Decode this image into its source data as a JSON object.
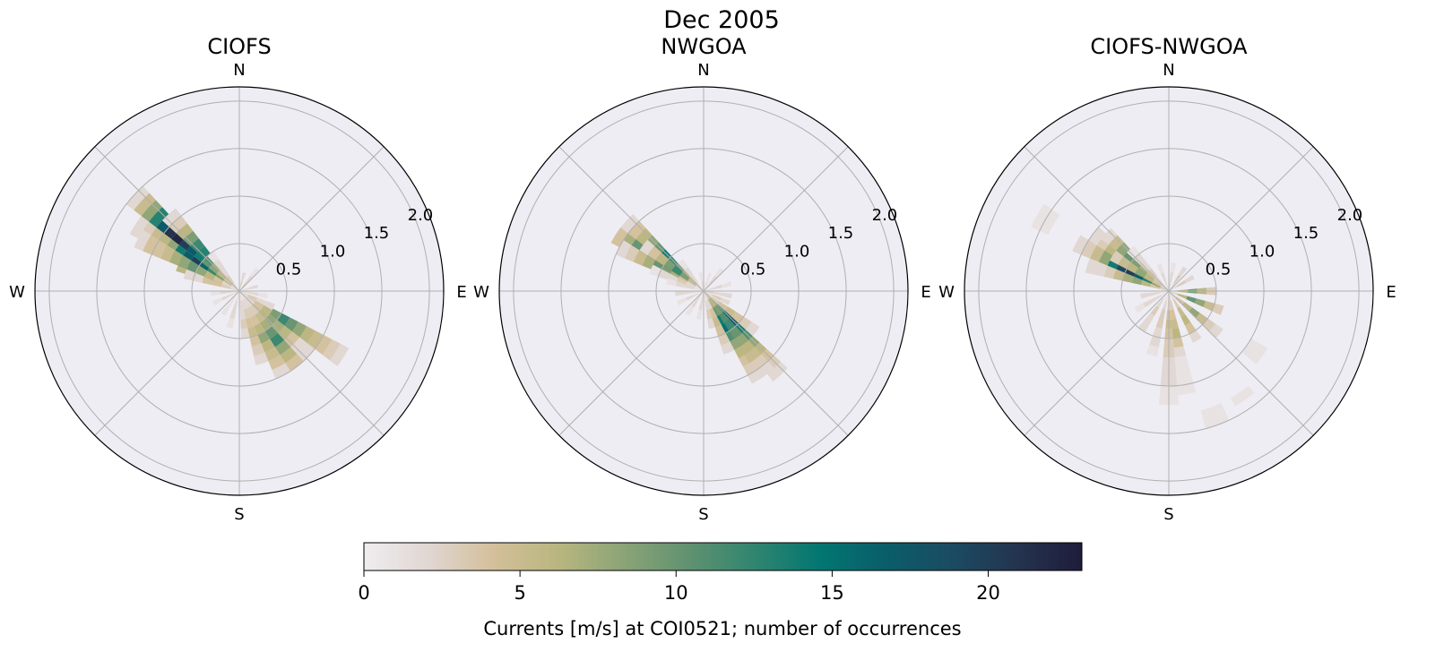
{
  "figure_title": "Dec 2005",
  "chart_data": {
    "type": "heatmap",
    "projection": "polar",
    "title": "Dec 2005",
    "direction_labels": [
      "N",
      "E",
      "S",
      "W"
    ],
    "radial_ticks": [
      "0.5",
      "1.0",
      "1.5",
      "2.0"
    ],
    "radial_tick_values": [
      0.5,
      1.0,
      1.5,
      2.0
    ],
    "rlim": [
      0,
      2.15
    ],
    "grid": true,
    "colorbar": {
      "label": "Currents [m/s] at COI0521; number of occurrences",
      "ticks": [
        "0",
        "5",
        "10",
        "15",
        "20"
      ],
      "tick_values": [
        0,
        5,
        10,
        15,
        20
      ],
      "range": [
        0,
        23
      ],
      "colors": [
        "#efedf0",
        "#e0d6d2",
        "#d3bf99",
        "#b8b67f",
        "#8aa377",
        "#5f9170",
        "#2f8570",
        "#027671",
        "#0a5d6a",
        "#1b4b63",
        "#24344f",
        "#1e1c3b"
      ]
    },
    "panels": [
      {
        "title": "CIOFS",
        "wedges": [
          {
            "dir": 292.5,
            "counts": [
              2,
              5,
              8,
              12,
              7,
              5,
              6
            ]
          },
          {
            "dir": 302.5,
            "counts": [
              3,
              6,
              9,
              12,
              16,
              20,
              17,
              14,
              8,
              6,
              5,
              3,
              2
            ]
          },
          {
            "dir": 312.5,
            "counts": [
              2,
              4,
              6,
              8,
              10,
              14,
              17,
              20,
              22,
              21,
              17,
              13,
              8,
              5,
              2
            ]
          },
          {
            "dir": 317.5,
            "counts": [
              1,
              3,
              5,
              8,
              11,
              13,
              12,
              9,
              6,
              3,
              2
            ]
          },
          {
            "dir": 297.5,
            "counts": [
              1,
              2,
              4,
              6,
              8,
              10,
              8,
              7,
              5,
              4,
              4,
              2
            ]
          },
          {
            "dir": 287.5,
            "counts": [
              2,
              3,
              4,
              4,
              2,
              2
            ]
          },
          {
            "dir": 322.5,
            "counts": [
              2,
              3,
              2,
              2,
              1
            ]
          },
          {
            "dir": 122.5,
            "counts": [
              2,
              3,
              4,
              6,
              9,
              12,
              10,
              8,
              6,
              5,
              4,
              3,
              2
            ]
          },
          {
            "dir": 132.5,
            "counts": [
              1,
              2,
              4,
              6,
              8,
              7,
              6,
              4,
              2,
              2
            ]
          },
          {
            "dir": 142.5,
            "counts": [
              1,
              2,
              3,
              5,
              7,
              10,
              12,
              8,
              6,
              4
            ]
          },
          {
            "dir": 152.5,
            "counts": [
              1,
              2,
              3,
              4,
              6,
              8,
              6,
              5,
              4,
              2
            ]
          },
          {
            "dir": 162.5,
            "counts": [
              1,
              2,
              3,
              4,
              5,
              4,
              3,
              2
            ]
          },
          {
            "dir": 172.5,
            "counts": [
              1,
              2,
              2,
              3,
              2
            ]
          },
          {
            "dir": 115,
            "counts": [
              2,
              3,
              2,
              2
            ]
          },
          {
            "dir": 195,
            "counts": [
              1,
              2,
              2,
              1
            ]
          },
          {
            "dir": 215,
            "counts": [
              1,
              1,
              1
            ]
          },
          {
            "dir": 245,
            "counts": [
              2,
              2,
              1
            ]
          },
          {
            "dir": 265,
            "counts": [
              2,
              2,
              1
            ]
          },
          {
            "dir": 15,
            "counts": [
              3,
              2
            ]
          },
          {
            "dir": 40,
            "counts": [
              3,
              2,
              1
            ]
          },
          {
            "dir": 75,
            "counts": [
              2,
              2
            ]
          },
          {
            "dir": 100,
            "counts": [
              2,
              2,
              1
            ]
          }
        ]
      },
      {
        "title": "NWGOA",
        "wedges": [
          {
            "dir": 302.5,
            "counts": [
              5,
              10,
              14,
              20,
              23,
              19,
              16,
              12,
              10,
              7,
              4
            ]
          },
          {
            "dir": 312.5,
            "counts": [
              2,
              4,
              7,
              10,
              12,
              14,
              10,
              8,
              6,
              4,
              2
            ]
          },
          {
            "dir": 307.5,
            "counts": [
              2,
              5,
              9,
              12,
              9,
              6,
              4,
              2
            ]
          },
          {
            "dir": 297.5,
            "counts": [
              1,
              2,
              4,
              7,
              9,
              10,
              7,
              5,
              3,
              2
            ]
          },
          {
            "dir": 292.5,
            "counts": [
              1,
              2,
              3,
              2,
              2,
              1
            ]
          },
          {
            "dir": 285,
            "counts": [
              1,
              2,
              2,
              1
            ]
          },
          {
            "dir": 322.5,
            "counts": [
              1,
              2,
              2,
              1
            ]
          },
          {
            "dir": 137.5,
            "counts": [
              5,
              9,
              13,
              17,
              18,
              14,
              11,
              8,
              6,
              4,
              3,
              2
            ]
          },
          {
            "dir": 147.5,
            "counts": [
              4,
              7,
              10,
              14,
              15,
              11,
              8,
              6,
              4,
              3,
              2
            ]
          },
          {
            "dir": 142.5,
            "counts": [
              3,
              6,
              9,
              11,
              12,
              10,
              8,
              6,
              5,
              3,
              2
            ]
          },
          {
            "dir": 127.5,
            "counts": [
              2,
              3,
              4,
              5,
              4,
              3,
              2
            ]
          },
          {
            "dir": 157.5,
            "counts": [
              1,
              2,
              4,
              5,
              4,
              3,
              2
            ]
          },
          {
            "dir": 167.5,
            "counts": [
              1,
              2,
              3,
              2
            ]
          },
          {
            "dir": 115,
            "counts": [
              2,
              3,
              2
            ]
          },
          {
            "dir": 100,
            "counts": [
              3,
              2,
              2
            ]
          },
          {
            "dir": 75,
            "counts": [
              2,
              2,
              1
            ]
          },
          {
            "dir": 40,
            "counts": [
              2,
              2,
              1
            ]
          },
          {
            "dir": 20,
            "counts": [
              2,
              1
            ]
          },
          {
            "dir": 350,
            "counts": [
              2,
              1
            ]
          },
          {
            "dir": 190,
            "counts": [
              2,
              2,
              1
            ]
          },
          {
            "dir": 215,
            "counts": [
              2,
              2,
              1
            ]
          },
          {
            "dir": 245,
            "counts": [
              2,
              2,
              1
            ]
          },
          {
            "dir": 265,
            "counts": [
              2,
              2,
              2
            ]
          }
        ]
      },
      {
        "title": "CIOFS-NWGOA",
        "wedges": [
          {
            "dir": 297.5,
            "counts": [
              6,
              9,
              13,
              17,
              20,
              19,
              14,
              8,
              5,
              3,
              2
            ]
          },
          {
            "dir": 307.5,
            "counts": [
              4,
              8,
              12,
              15,
              16,
              13,
              9,
              6,
              3,
              2
            ]
          },
          {
            "dir": 312.5,
            "counts": [
              2,
              3,
              5,
              7,
              9,
              10,
              8,
              5,
              2
            ]
          },
          {
            "dir": 287.5,
            "counts": [
              2,
              4,
              6,
              8,
              7,
              5,
              3,
              2,
              2
            ]
          },
          {
            "dir": 302.5,
            "counts": [
              2,
              4,
              6,
              8,
              6,
              5,
              3
            ]
          },
          {
            "dir": 317.5,
            "counts": [
              2,
              2,
              3,
              2,
              2,
              1
            ]
          },
          {
            "dir": 300,
            "counts": [
              0,
              0,
              0,
              0,
              0,
              0,
              0,
              0,
              0,
              0,
              0,
              0,
              0,
              0,
              1,
              1
            ]
          },
          {
            "dir": 110,
            "counts": [
              3,
              6,
              10,
              8,
              5,
              3
            ]
          },
          {
            "dir": 90,
            "counts": [
              4,
              6,
              9,
              6,
              3
            ]
          },
          {
            "dir": 130,
            "counts": [
              2,
              4,
              6,
              8,
              5,
              3,
              2
            ]
          },
          {
            "dir": 150,
            "counts": [
              2,
              3,
              5,
              6,
              4,
              2
            ]
          },
          {
            "dir": 170,
            "counts": [
              2,
              3,
              4,
              5,
              6,
              4,
              2,
              1,
              1,
              1,
              1
            ]
          },
          {
            "dir": 180,
            "counts": [
              1,
              2,
              4,
              5,
              4,
              3,
              3,
              2,
              2,
              2,
              1,
              1
            ]
          },
          {
            "dir": 195,
            "counts": [
              1,
              2,
              3,
              3,
              2,
              2,
              1
            ]
          },
          {
            "dir": 215,
            "counts": [
              1,
              2,
              3,
              2,
              2
            ]
          },
          {
            "dir": 240,
            "counts": [
              1,
              2,
              2,
              1
            ]
          },
          {
            "dir": 260,
            "counts": [
              1,
              2,
              2
            ]
          },
          {
            "dir": 60,
            "counts": [
              2,
              3,
              2
            ]
          },
          {
            "dir": 35,
            "counts": [
              2,
              3,
              2
            ]
          },
          {
            "dir": 10,
            "counts": [
              2,
              2,
              1
            ]
          },
          {
            "dir": 340,
            "counts": [
              2,
              2,
              1
            ]
          },
          {
            "dir": 160,
            "counts": [
              0,
              0,
              0,
              0,
              0,
              0,
              0,
              0,
              0,
              0,
              0,
              0,
              0,
              1,
              1
            ]
          },
          {
            "dir": 145,
            "counts": [
              0,
              0,
              0,
              0,
              0,
              0,
              0,
              0,
              0,
              0,
              0,
              0,
              0,
              1
            ]
          },
          {
            "dir": 125,
            "counts": [
              0,
              0,
              0,
              0,
              0,
              0,
              0,
              0,
              0,
              0,
              1,
              1
            ]
          }
        ]
      }
    ]
  }
}
